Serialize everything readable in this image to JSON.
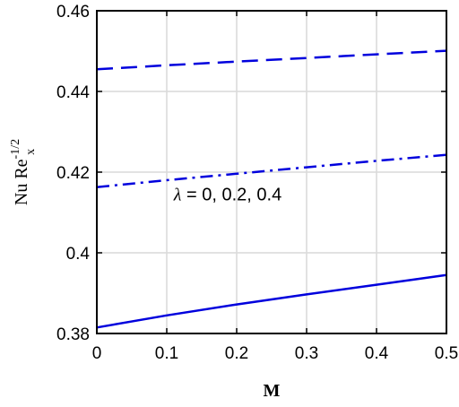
{
  "chart_data": {
    "type": "line",
    "xlabel": "M",
    "ylabel": {
      "main": "Nu Re",
      "sup": "-1/2",
      "sub": "x"
    },
    "xlim": [
      0,
      0.5
    ],
    "ylim": [
      0.38,
      0.46
    ],
    "xticks": [
      0,
      0.1,
      0.2,
      0.3,
      0.4,
      0.5
    ],
    "xtick_labels": [
      "0",
      "0.1",
      "0.2",
      "0.3",
      "0.4",
      "0.5"
    ],
    "yticks": [
      0.38,
      0.4,
      0.42,
      0.44,
      0.46
    ],
    "ytick_labels": [
      "0.38",
      "0.4",
      "0.42",
      "0.44",
      "0.46"
    ],
    "grid": true,
    "annotation": {
      "symbol": "λ",
      "text": " = 0, 0.2, 0.4",
      "x": 0.11,
      "y": 0.413
    },
    "series": [
      {
        "style": "solid",
        "color": "#0000dd",
        "x": [
          0,
          0.1,
          0.2,
          0.3,
          0.4,
          0.5
        ],
        "y": [
          0.3815,
          0.3845,
          0.3872,
          0.3897,
          0.3921,
          0.3945
        ]
      },
      {
        "style": "dashdot",
        "color": "#0000dd",
        "x": [
          0,
          0.1,
          0.2,
          0.3,
          0.4,
          0.5
        ],
        "y": [
          0.4163,
          0.418,
          0.4196,
          0.4212,
          0.4228,
          0.4243
        ]
      },
      {
        "style": "dashed",
        "color": "#0000dd",
        "x": [
          0,
          0.1,
          0.2,
          0.3,
          0.4,
          0.5
        ],
        "y": [
          0.4455,
          0.4465,
          0.4474,
          0.4483,
          0.4492,
          0.4501
        ]
      }
    ]
  }
}
